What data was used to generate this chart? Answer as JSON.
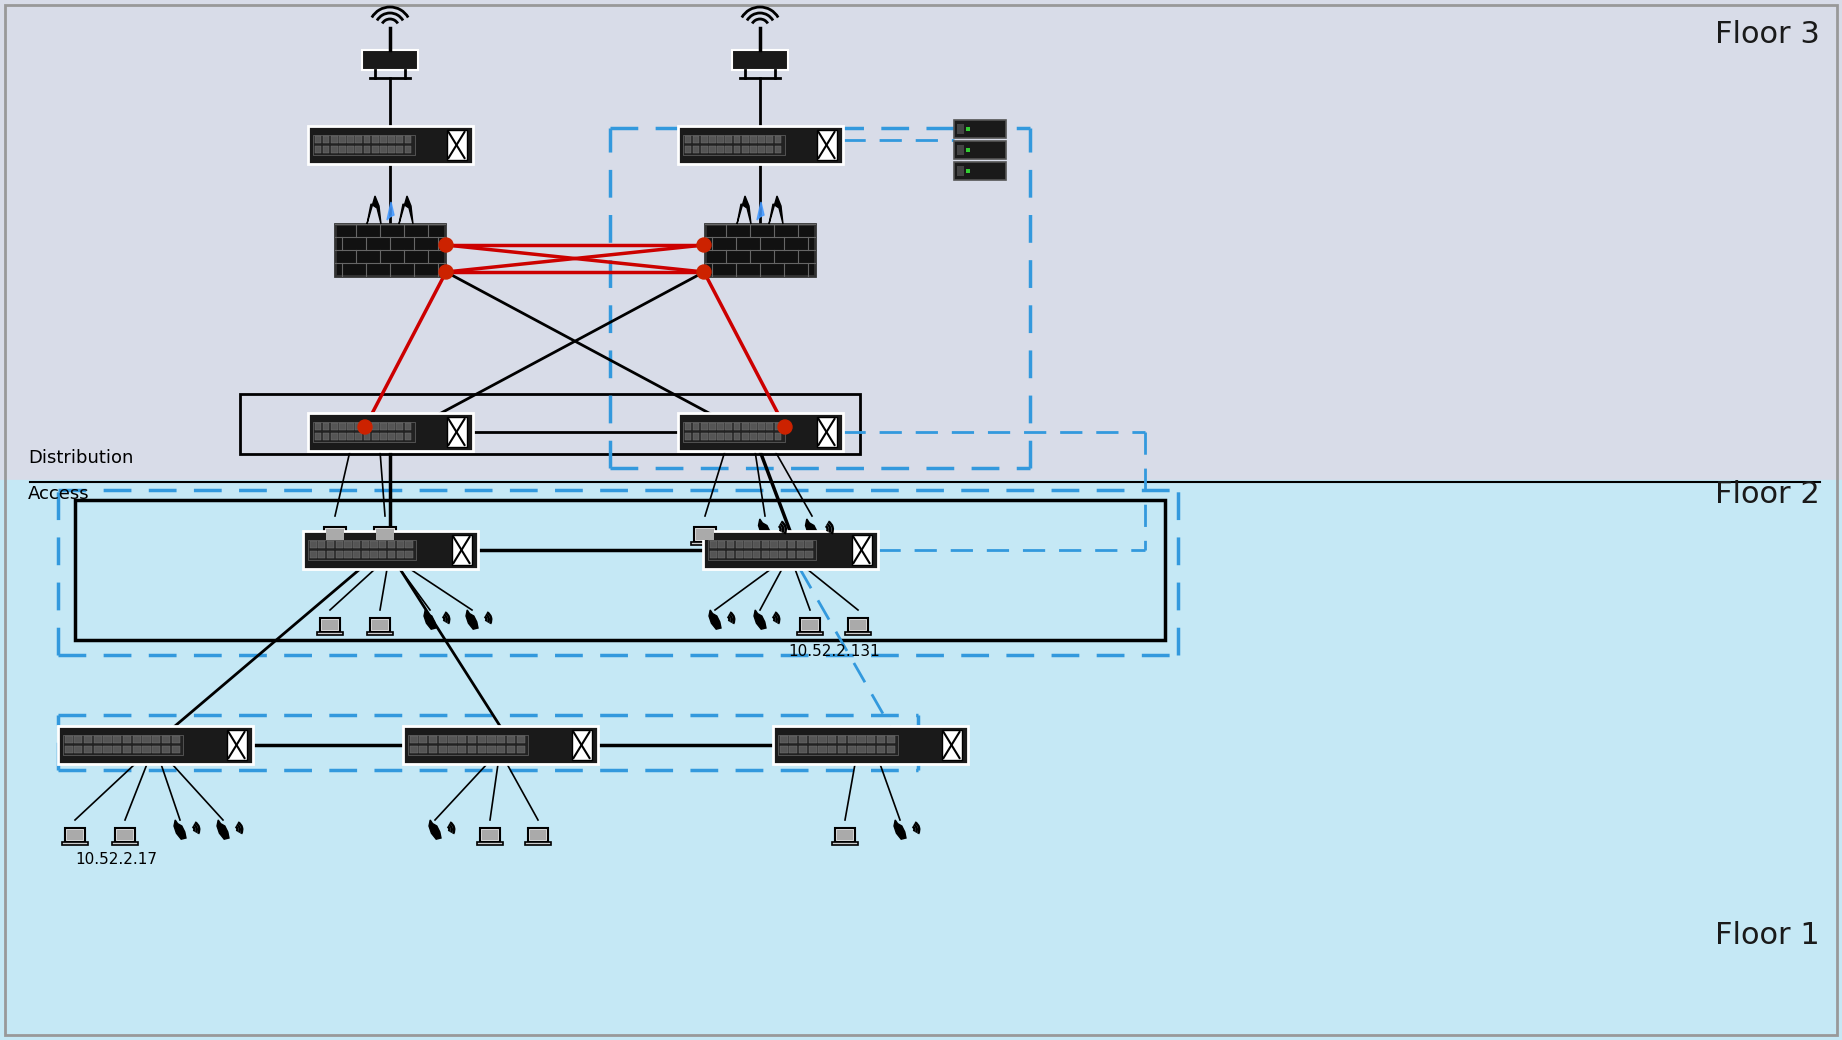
{
  "bg_top": "#d8dce8",
  "bg_floor2": "#c5e8f5",
  "bg_floor1": "#c5e8f5",
  "dashed_blue": "#3399dd",
  "red_line": "#cc0000",
  "black_line": "#111111",
  "dark_device": "#1a1a1a",
  "title_floor3": "Floor 3",
  "title_floor2": "Floor 2",
  "title_floor1": "Floor 1",
  "label_dist_access": "Distribution\nAccess",
  "label_1052217": "10.52.2.17",
  "label_105221131": "10.52.2.131"
}
